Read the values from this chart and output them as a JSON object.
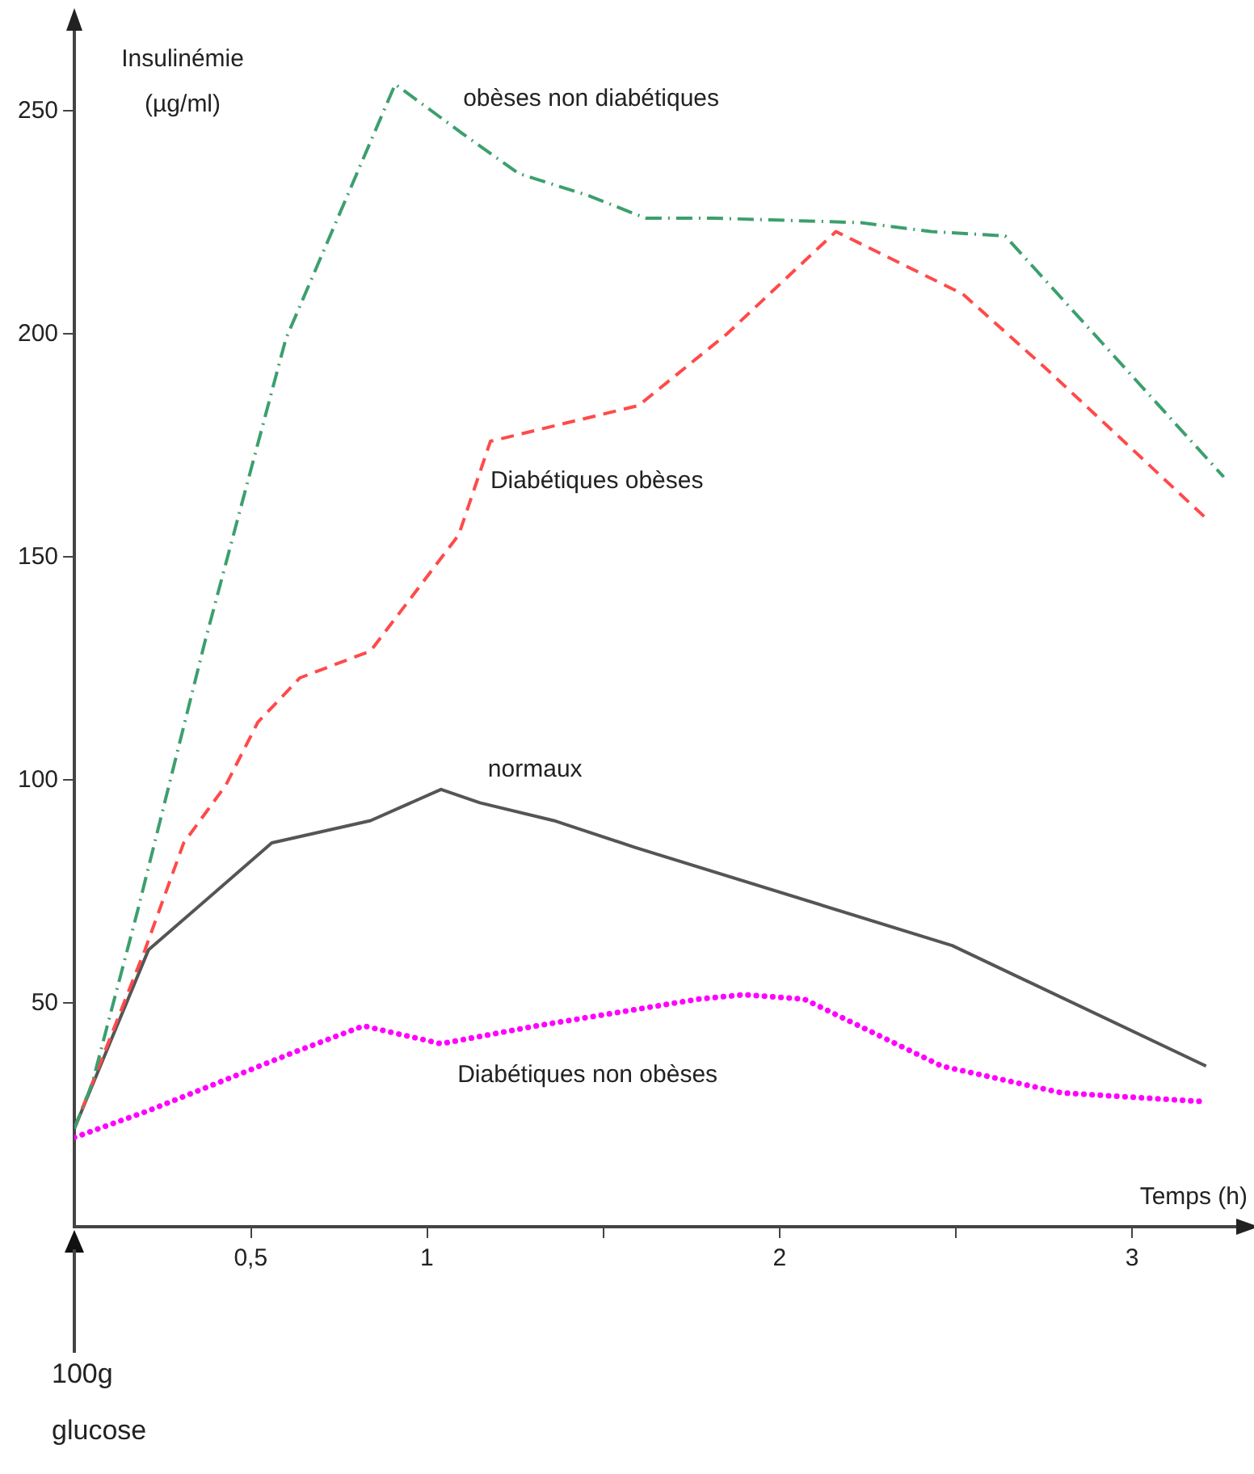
{
  "chart_data": {
    "type": "line",
    "xlabel": "Temps (h)",
    "ylabel": "Insulinémie\n(µg/ml)",
    "xlim": [
      0,
      3.3
    ],
    "xticks": [
      {
        "value": 0.5,
        "label": "0,5"
      },
      1,
      {
        "value": 1.5,
        "label": null
      },
      2,
      {
        "value": 2.5,
        "label": null
      },
      3
    ],
    "ylim": [
      0,
      268
    ],
    "yticks": [
      50,
      100,
      150,
      200,
      250
    ],
    "grid": false,
    "legend": false,
    "marker": "none",
    "annotations": [
      "100g\nglucose"
    ],
    "series": [
      {
        "name": "obèses non diabétiques",
        "color": "#3c9f6e",
        "line_style": "dashdot",
        "x": [
          0,
          0.05,
          0.18,
          0.37,
          0.6,
          0.91,
          1.1,
          1.26,
          1.46,
          1.62,
          1.81,
          2.23,
          2.43,
          2.64,
          3.26
        ],
        "values": [
          22,
          32,
          71,
          131,
          199,
          256,
          245,
          236,
          231,
          226,
          226,
          225,
          223,
          222,
          168
        ]
      },
      {
        "name": "Diabétiques obèses",
        "color": "#ff4a4a",
        "line_style": "dashed",
        "x": [
          0,
          0.2,
          0.31,
          0.43,
          0.52,
          0.64,
          0.84,
          1.09,
          1.18,
          1.6,
          1.85,
          2.16,
          2.52,
          2.76,
          3.22
        ],
        "values": [
          22,
          62,
          86,
          99,
          113,
          123,
          129,
          155,
          176,
          184,
          200,
          223,
          209,
          192,
          158
        ]
      },
      {
        "name": "normaux",
        "color": "#555555",
        "line_style": "solid",
        "x": [
          0,
          0.21,
          0.56,
          0.84,
          1.04,
          1.15,
          1.36,
          1.59,
          2.49,
          3.21
        ],
        "values": [
          22,
          62,
          86,
          91,
          98,
          95,
          91,
          85,
          63,
          36
        ]
      },
      {
        "name": "Diabétiques non obèses",
        "color": "#ff00ff",
        "line_style": "dotted",
        "x": [
          0,
          0.21,
          0.62,
          0.82,
          1.04,
          1.31,
          1.77,
          1.9,
          2.07,
          2.46,
          2.8,
          3.21
        ],
        "values": [
          20,
          26,
          39,
          45,
          41,
          45,
          51,
          52,
          51,
          36,
          30,
          28
        ]
      }
    ]
  }
}
